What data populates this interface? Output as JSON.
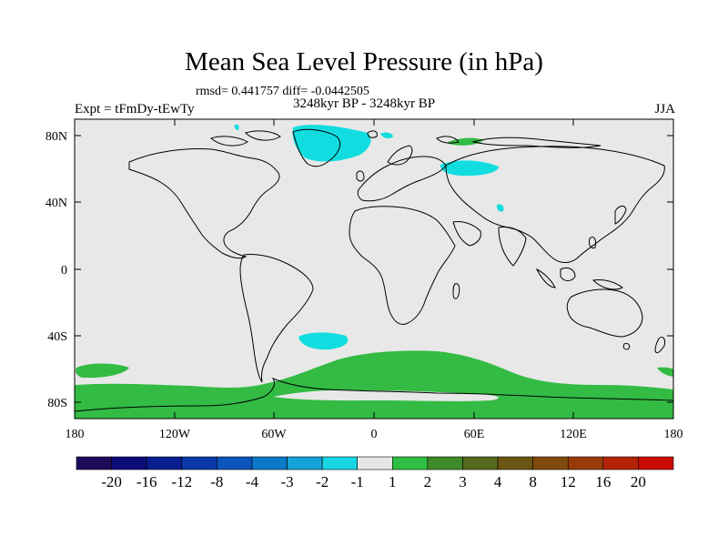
{
  "title": "Mean Sea Level Pressure (in hPa)",
  "stats": "rmsd= 0.441757 diff= -0.0442505",
  "experiment": "Expt = tFmDy-tEwTy",
  "period": "3248kyr BP - 3248kyr BP",
  "season": "JJA",
  "colors": {
    "ocean_land_neutral": "#e8e8e8",
    "positive_fill": "#33bb44",
    "negative_fill": "#11dde0",
    "coastline": "#000000"
  },
  "map": {
    "lat_ticks": [
      "80N",
      "40N",
      "0",
      "40S",
      "80S"
    ],
    "lon_ticks": [
      "180",
      "120W",
      "60W",
      "0",
      "60E",
      "120E",
      "180"
    ]
  },
  "colorbar": {
    "colors": [
      "#1e0a5a",
      "#0c0d78",
      "#0a1f8f",
      "#0a38a8",
      "#0b55bd",
      "#0a79c9",
      "#14a3d8",
      "#18d6e2",
      "#e6e6e6",
      "#2fbf43",
      "#3f8a2a",
      "#556a1d",
      "#6b5612",
      "#7f4a0c",
      "#993a08",
      "#b52306",
      "#cc0b04"
    ],
    "labels": [
      "-20",
      "-16",
      "-12",
      "-8",
      "-4",
      "-3",
      "-2",
      "-1",
      "1",
      "2",
      "3",
      "4",
      "8",
      "12",
      "16",
      "20"
    ]
  }
}
